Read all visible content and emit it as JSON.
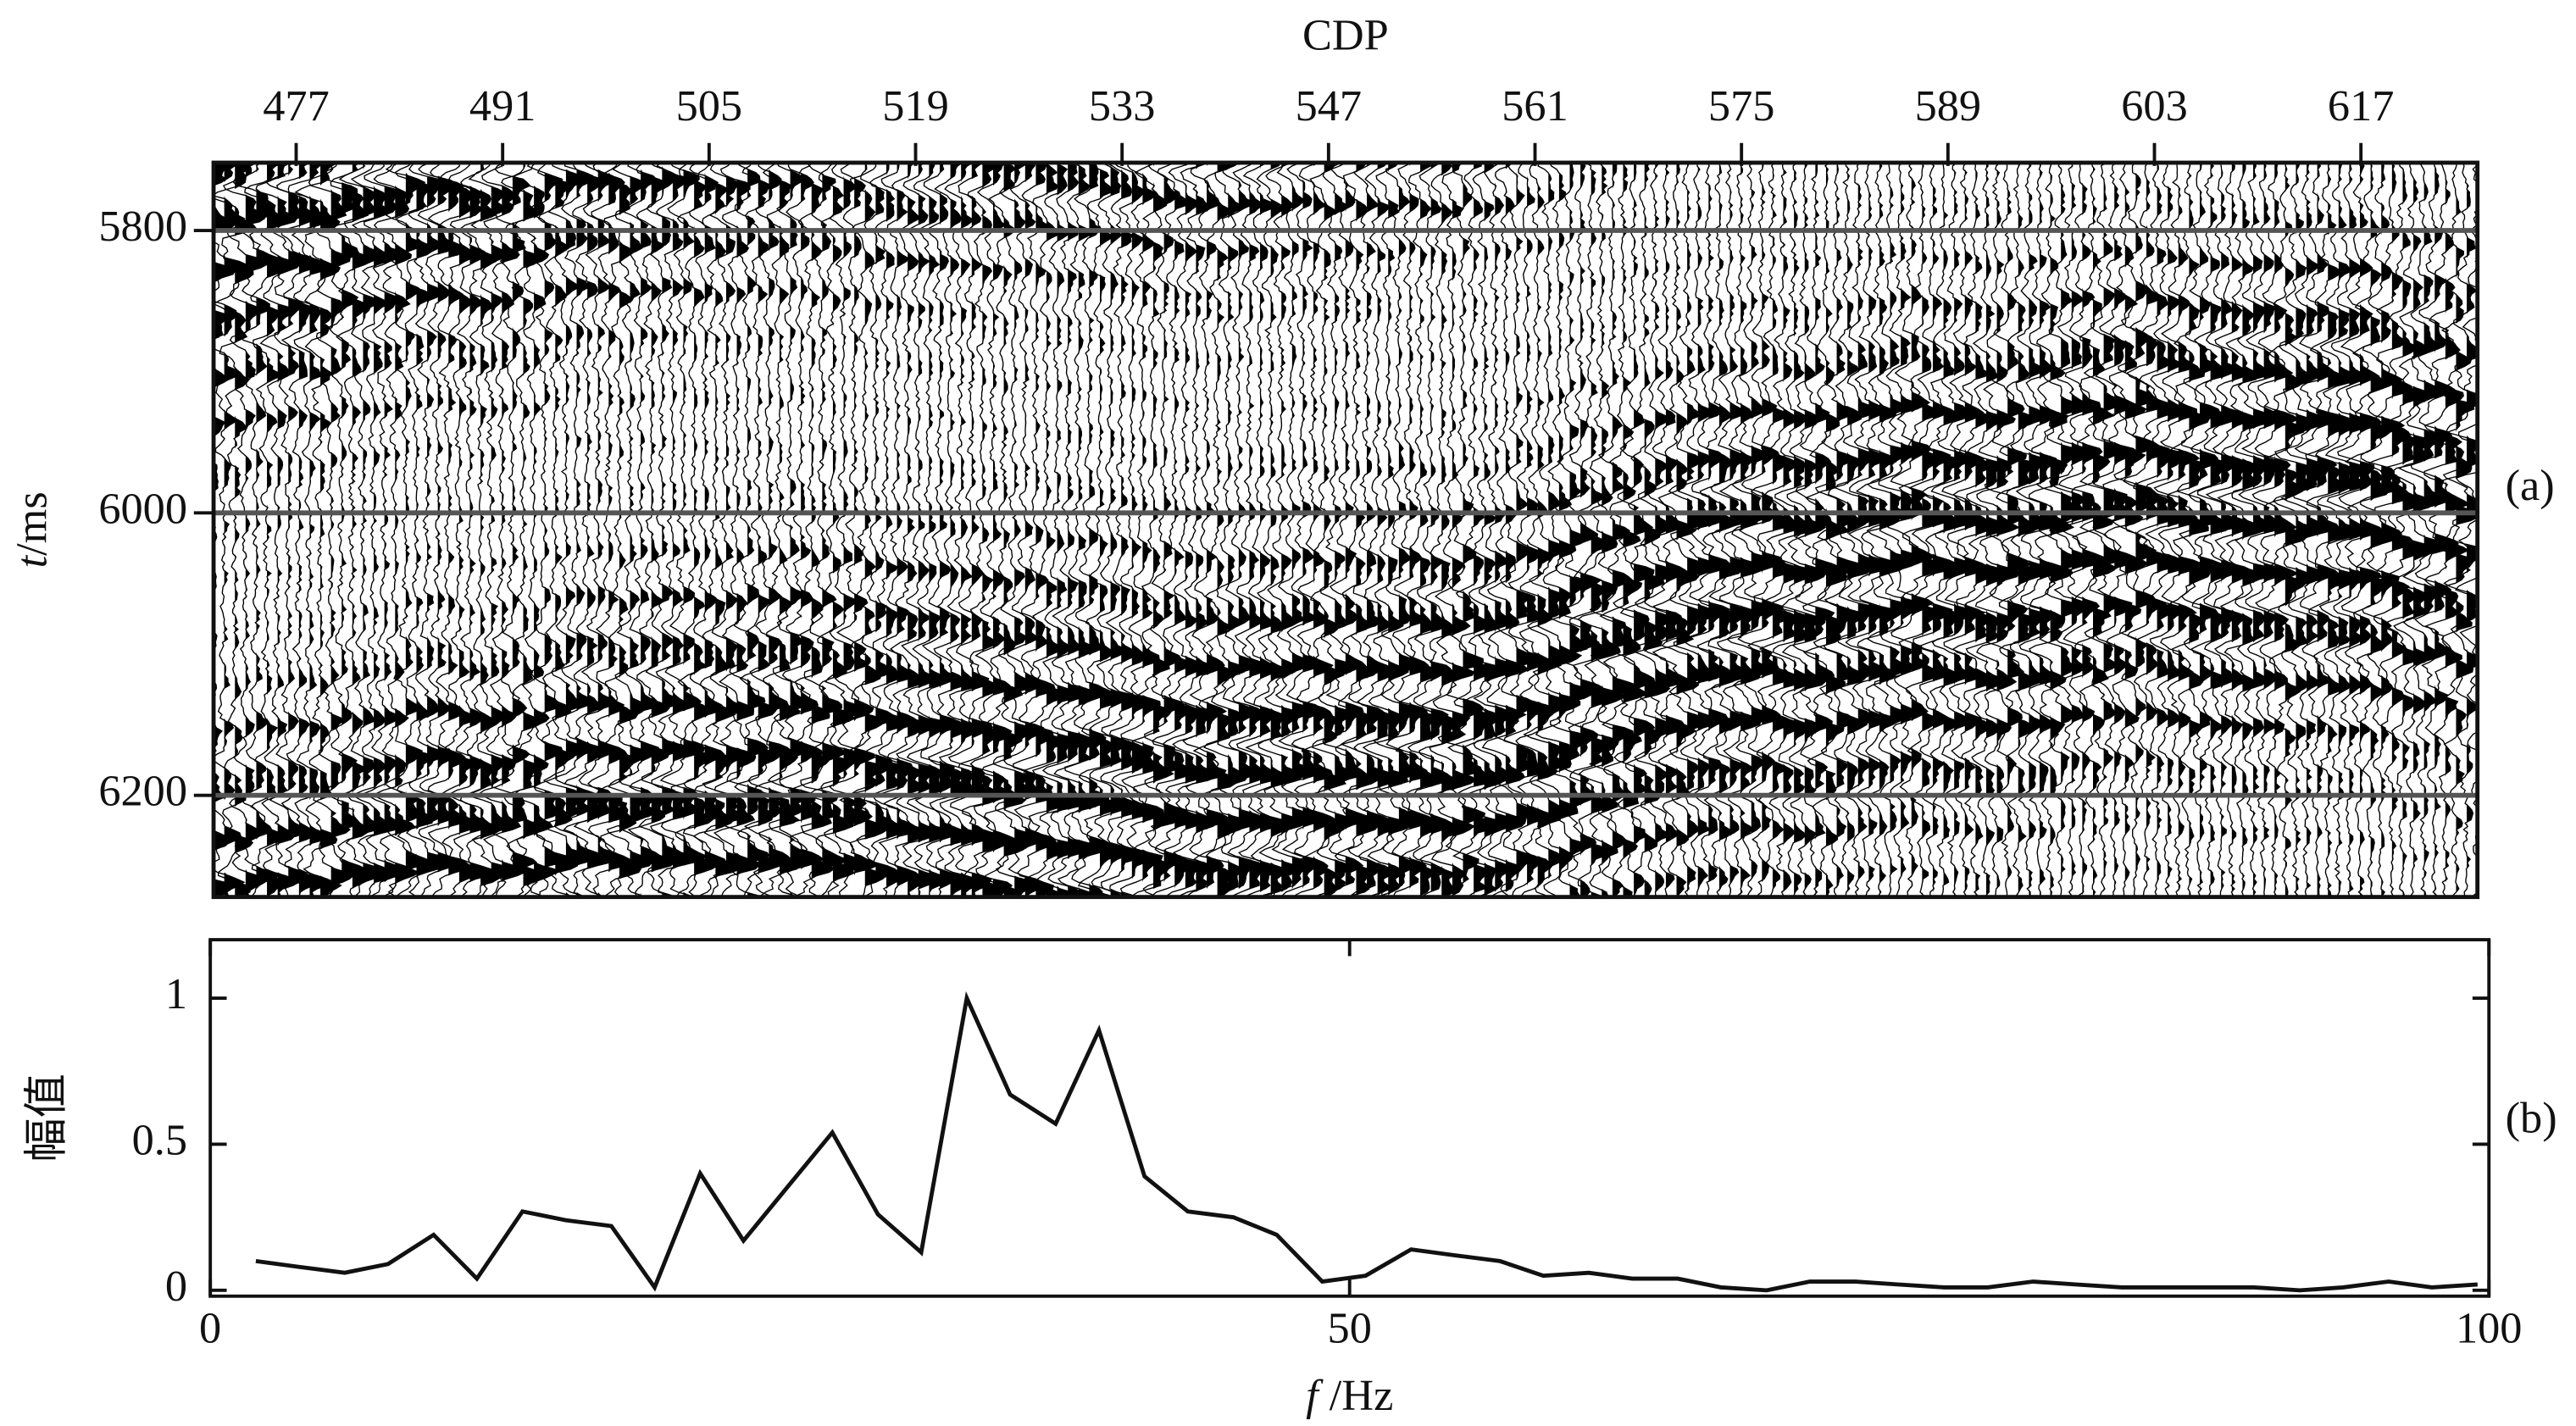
{
  "chart_data": [
    {
      "type": "seismic",
      "x_label": "CDP",
      "y_label": "t/ms",
      "panel_label": "(a)",
      "xlim": [
        471.4,
        624.9
      ],
      "xticks": [
        477,
        491,
        505,
        519,
        533,
        547,
        561,
        575,
        589,
        603,
        617
      ],
      "ylim": [
        5752,
        6272
      ],
      "yticks": [
        5800,
        6000,
        6200
      ],
      "y_inverted": true,
      "grid": true,
      "color": "#000000",
      "grid_color": "#555555"
    },
    {
      "type": "line",
      "x_label": "f /Hz",
      "y_label": "幅值",
      "panel_label": "(b)",
      "xlim": [
        0,
        100
      ],
      "xticks": [
        0,
        50,
        100
      ],
      "ylim": [
        -0.02,
        1.2
      ],
      "yticks": [
        0,
        0.5,
        1
      ],
      "x": [
        2.0,
        3.9,
        5.9,
        7.8,
        9.8,
        11.7,
        13.7,
        15.6,
        17.6,
        19.5,
        21.5,
        23.4,
        25.4,
        27.3,
        29.3,
        31.2,
        33.2,
        35.1,
        37.1,
        39.0,
        41.0,
        42.9,
        44.9,
        46.8,
        48.8,
        50.7,
        52.7,
        54.6,
        56.6,
        58.5,
        60.5,
        62.4,
        64.4,
        66.3,
        68.3,
        70.2,
        72.2,
        74.1,
        76.1,
        78.0,
        80.0,
        81.9,
        83.9,
        85.8,
        87.8,
        89.7,
        91.7,
        93.6,
        95.6,
        97.5,
        99.5
      ],
      "series": [
        {
          "color": "#111111",
          "values": [
            0.1,
            0.08,
            0.06,
            0.09,
            0.19,
            0.04,
            0.27,
            0.24,
            0.22,
            0.01,
            0.4,
            0.17,
            0.36,
            0.54,
            0.26,
            0.13,
            1.0,
            0.67,
            0.57,
            0.89,
            0.39,
            0.27,
            0.25,
            0.19,
            0.03,
            0.05,
            0.14,
            0.12,
            0.1,
            0.05,
            0.06,
            0.04,
            0.04,
            0.01,
            0.0,
            0.03,
            0.03,
            0.02,
            0.01,
            0.01,
            0.03,
            0.02,
            0.01,
            0.01,
            0.01,
            0.01,
            0.0,
            0.01,
            0.03,
            0.01,
            0.02
          ]
        }
      ]
    }
  ]
}
